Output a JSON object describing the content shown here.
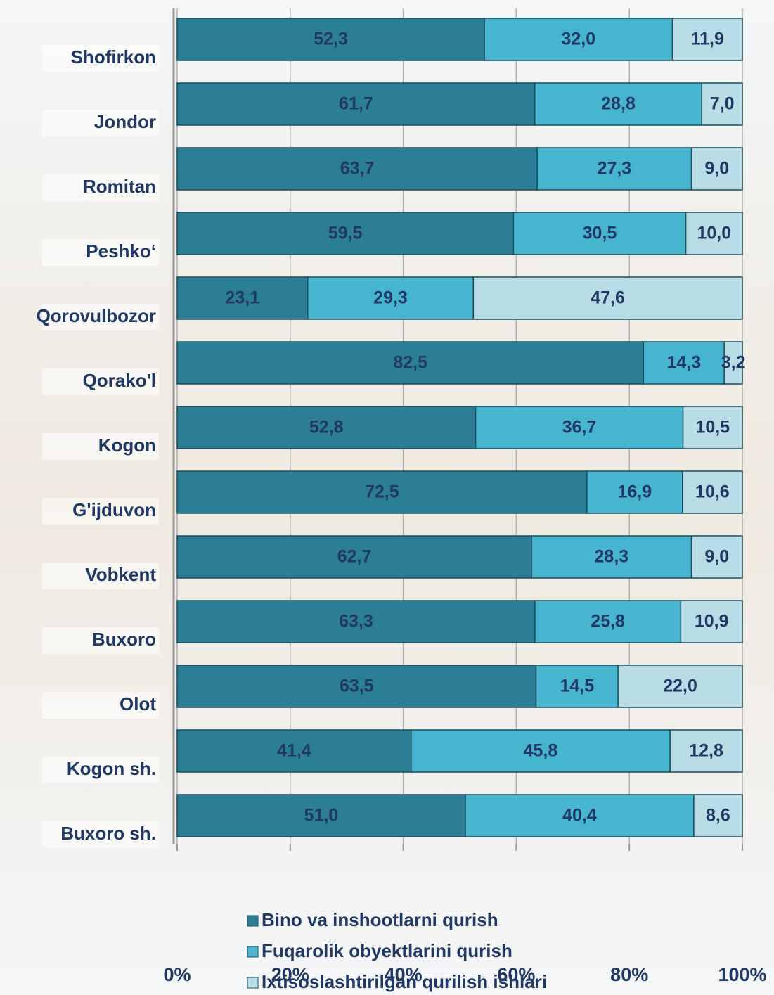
{
  "chart_data": {
    "type": "bar",
    "orientation": "horizontal",
    "stacked": "percent",
    "categories": [
      "Shofirkon",
      "Jondor",
      "Romitan",
      "Peshko‘",
      "Qorovulbozor",
      "Qorako'l",
      "Kogon",
      "G'ijduvon",
      "Vobkent",
      "Buxoro",
      "Olot",
      "Kogon sh.",
      "Buxoro sh."
    ],
    "series": [
      {
        "name": "Bino va inshootlarni qurish",
        "color": "#2b7e95",
        "values": [
          52.3,
          61.7,
          63.7,
          59.5,
          23.1,
          82.5,
          52.8,
          72.5,
          62.7,
          63.3,
          63.5,
          41.4,
          51.0
        ],
        "value_labels": [
          "52,3",
          "61,7",
          "63,7",
          "59,5",
          "23,1",
          "82,5",
          "52,8",
          "72,5",
          "62,7",
          "63,3",
          "63,5",
          "41,4",
          "51,0"
        ]
      },
      {
        "name": "Fuqarolik obyektlarini qurish",
        "color": "#47b5cf",
        "values": [
          32.0,
          28.8,
          27.3,
          30.5,
          29.3,
          14.3,
          36.7,
          16.9,
          28.3,
          25.8,
          14.5,
          45.8,
          40.4
        ],
        "value_labels": [
          "32,0",
          "28,8",
          "27,3",
          "30,5",
          "29,3",
          "14,3",
          "36,7",
          "16,9",
          "28,3",
          "25,8",
          "14,5",
          "45,8",
          "40,4"
        ]
      },
      {
        "name": "Ixtisoslashtirilgan qurilish ishlari",
        "color": "#b9dde7",
        "values": [
          11.9,
          7.0,
          9.0,
          10.0,
          47.6,
          3.2,
          10.5,
          10.6,
          9.0,
          10.9,
          22.0,
          12.8,
          8.6
        ],
        "value_labels": [
          "11,9",
          "7,0",
          "9,0",
          "10,0",
          "47,6",
          "3,2",
          "10,5",
          "10,6",
          "9,0",
          "10,9",
          "22,0",
          "12,8",
          "8,6"
        ]
      }
    ],
    "xlim": [
      0,
      100
    ],
    "xticks": [
      {
        "value": 0,
        "label": "0%"
      },
      {
        "value": 20,
        "label": "20%"
      },
      {
        "value": 40,
        "label": "40%"
      },
      {
        "value": 60,
        "label": "60%"
      },
      {
        "value": 80,
        "label": "80%"
      },
      {
        "value": 100,
        "label": "100%"
      }
    ],
    "grid": true,
    "legend": "bottom"
  }
}
